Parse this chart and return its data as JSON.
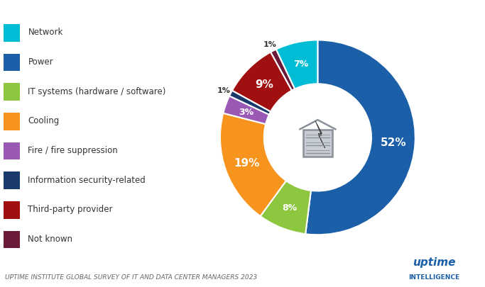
{
  "labels": [
    "Power",
    "IT systems (hardware / software)",
    "Cooling",
    "Fire / fire suppression",
    "Information security-related",
    "Third-party provider",
    "Not known",
    "Network"
  ],
  "values": [
    52,
    8,
    19,
    3,
    1,
    9,
    1,
    7
  ],
  "colors": [
    "#1a5fa8",
    "#8dc63f",
    "#f7941d",
    "#9b59b6",
    "#1a3a6b",
    "#a01010",
    "#6b1a3a",
    "#00bcd4"
  ],
  "pct_labels": [
    "52%",
    "8%",
    "19%",
    "3%",
    "1%",
    "9%",
    "1%",
    "7%"
  ],
  "legend_labels": [
    "Network",
    "Power",
    "IT systems (hardware / software)",
    "Cooling",
    "Fire / fire suppression",
    "Information security-related",
    "Third-party provider",
    "Not known"
  ],
  "legend_colors": [
    "#00bcd4",
    "#1a5fa8",
    "#8dc63f",
    "#f7941d",
    "#9b59b6",
    "#1a3a6b",
    "#a01010",
    "#6b1a3a"
  ],
  "footer_text": "UPTIME INSTITUTE GLOBAL SURVEY OF IT AND DATA CENTER MANAGERS 2023",
  "brand_text1": "uptime",
  "brand_text2": "INTELLIGENCE",
  "background_color": "#ffffff",
  "label_color": "#ffffff",
  "donut_width": 0.45,
  "building_color": "#c8cdd4",
  "building_lines": "#8a9099",
  "bolt_color": "#555555",
  "bolt_edge": "#333333"
}
